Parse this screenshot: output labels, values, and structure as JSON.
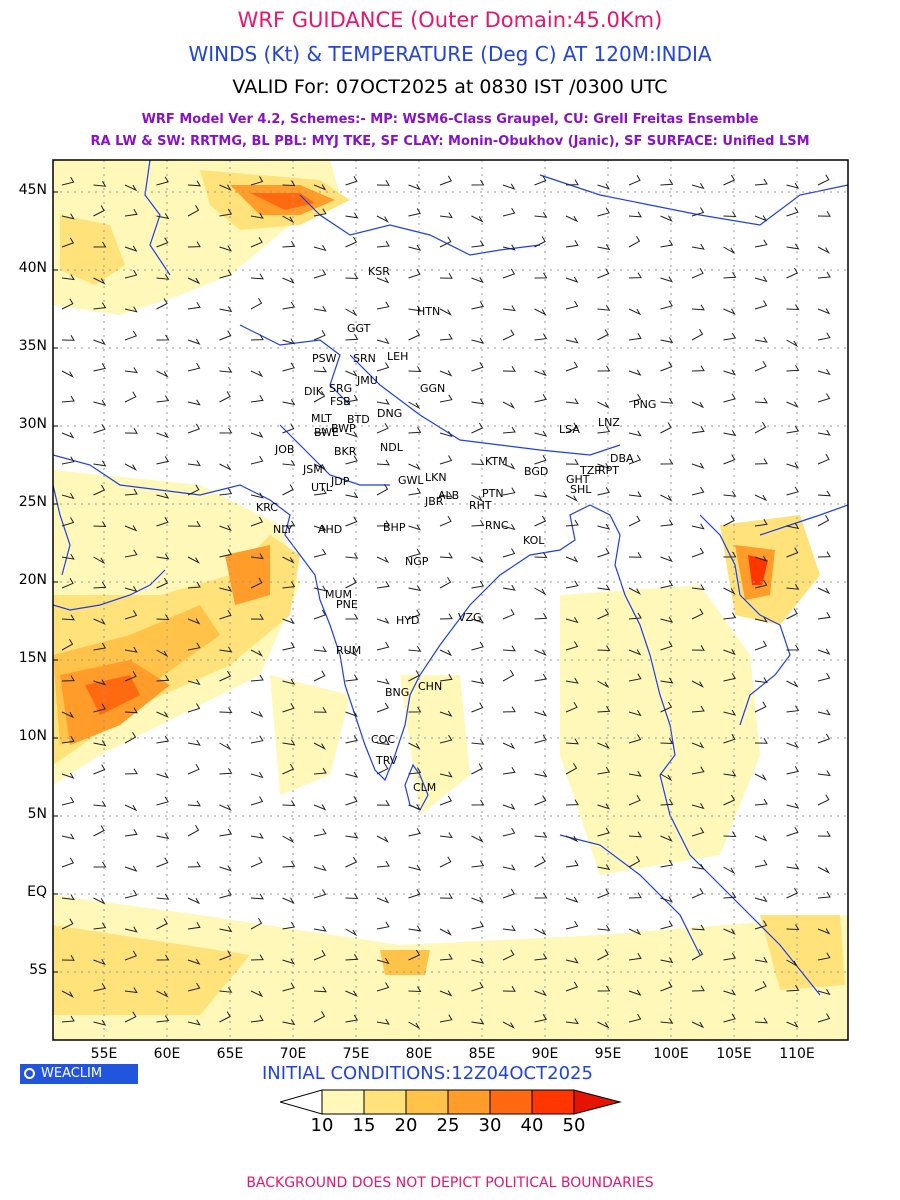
{
  "header": {
    "title1": "WRF GUIDANCE (Outer Domain:45.0Km)",
    "title2": "WINDS (Kt) & TEMPERATURE (Deg C) AT 120M:INDIA",
    "title3": "VALID For: 07OCT2025 at 0830 IST /0300 UTC",
    "info1": "WRF Model Ver 4.2, Schemes:- MP: WSM6-Class Graupel, CU: Grell Freitas Ensemble",
    "info2": "RA LW & SW: RRTMG, BL PBL: MYJ TKE, SF CLAY: Monin-Obukhov (Janic), SF SURFACE: Unified LSM"
  },
  "colors": {
    "title1": "#e8156e",
    "title2": "#2244dd",
    "title3": "#000000",
    "info": "#8811cc",
    "coast": "#1f3fe6",
    "grid": "#9a9a9a",
    "temp": "#2f45d9"
  },
  "map": {
    "lat_labels": [
      "45N",
      "40N",
      "35N",
      "30N",
      "25N",
      "20N",
      "15N",
      "10N",
      "5N",
      "EQ",
      "5S"
    ],
    "lon_labels": [
      "55E",
      "60E",
      "65E",
      "70E",
      "75E",
      "80E",
      "85E",
      "90E",
      "95E",
      "100E",
      "105E",
      "110E"
    ],
    "stations": [
      "KSR",
      "HTN",
      "GGT",
      "PSW",
      "SRN",
      "LEH",
      "JMU",
      "DIK",
      "SRG",
      "FSB",
      "GGN",
      "MLT",
      "BTD",
      "DNG",
      "BWP",
      "BWE",
      "JOB",
      "BKR",
      "NDL",
      "JSM",
      "LSA",
      "LNZ",
      "PNG",
      "KTM",
      "BGD",
      "TZP",
      "RPT",
      "DBA",
      "GHT",
      "SHL",
      "JDP",
      "UTL",
      "GWL",
      "LKN",
      "ALB",
      "PTN",
      "RHT",
      "KRC",
      "NLY",
      "AHD",
      "JBR",
      "BHP",
      "RNC",
      "KOL",
      "NGP",
      "MUM",
      "PNE",
      "HYD",
      "VZG",
      "RUM",
      "BNG",
      "CHN",
      "COC",
      "TRV",
      "CLM"
    ]
  },
  "footer": {
    "brand": "WEACLIM",
    "init": "INITIAL CONDITIONS:12Z04OCT2025",
    "legend_values": [
      "10",
      "15",
      "20",
      "25",
      "30",
      "40",
      "50"
    ],
    "legend_colors": [
      "#ffffff",
      "#fff8b8",
      "#ffe27a",
      "#ffc349",
      "#ff9c2a",
      "#ff6a10",
      "#ff3600",
      "#e51400"
    ],
    "disclaimer": "BACKGROUND DOES NOT DEPICT POLITICAL BOUNDARIES",
    "disclaimer_color": "#e8156e",
    "init_color": "#2244dd"
  }
}
